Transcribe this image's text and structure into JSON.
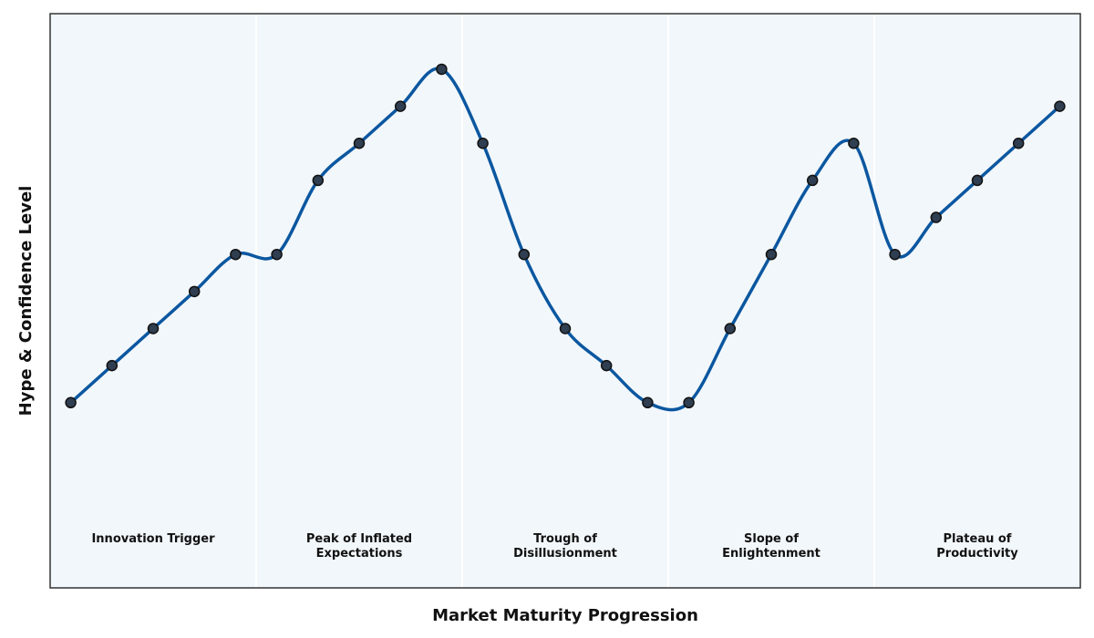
{
  "chart_data": {
    "type": "line",
    "title": "",
    "xlabel": "Market Maturity Progression",
    "ylabel": "Hype & Confidence Level",
    "xlim": [
      -0.5,
      24.5
    ],
    "ylim": [
      -4,
      11.5
    ],
    "x": [
      0,
      1,
      2,
      3,
      4,
      5,
      6,
      7,
      8,
      9,
      10,
      11,
      12,
      13,
      14,
      15,
      16,
      17,
      18,
      19,
      20,
      21,
      22,
      23,
      24
    ],
    "series": [
      {
        "values": [
          1,
          2,
          3,
          4,
          5,
          5,
          7,
          8,
          9,
          10,
          8,
          5,
          3,
          2,
          1,
          1,
          3,
          5,
          7,
          8,
          5,
          6,
          7,
          8,
          9
        ]
      }
    ],
    "phases": [
      {
        "label": "Innovation Trigger",
        "start": -0.5,
        "end": 4.5
      },
      {
        "label": "Peak of Inflated\nExpectations",
        "start": 4.5,
        "end": 9.5
      },
      {
        "label": "Trough of\nDisillusionment",
        "start": 9.5,
        "end": 14.5
      },
      {
        "label": "Slope of\nEnlightenment",
        "start": 14.5,
        "end": 19.5
      },
      {
        "label": "Plateau of\nProductivity",
        "start": 19.5,
        "end": 24.5
      }
    ],
    "grid": false,
    "colors": {
      "line": "#0b57a0",
      "marker": "#2f3e50",
      "marker_edge": "#111111",
      "plot_bg": "#f2f7fb",
      "phase_divider": "#ffffff",
      "frame": "#333333"
    }
  }
}
